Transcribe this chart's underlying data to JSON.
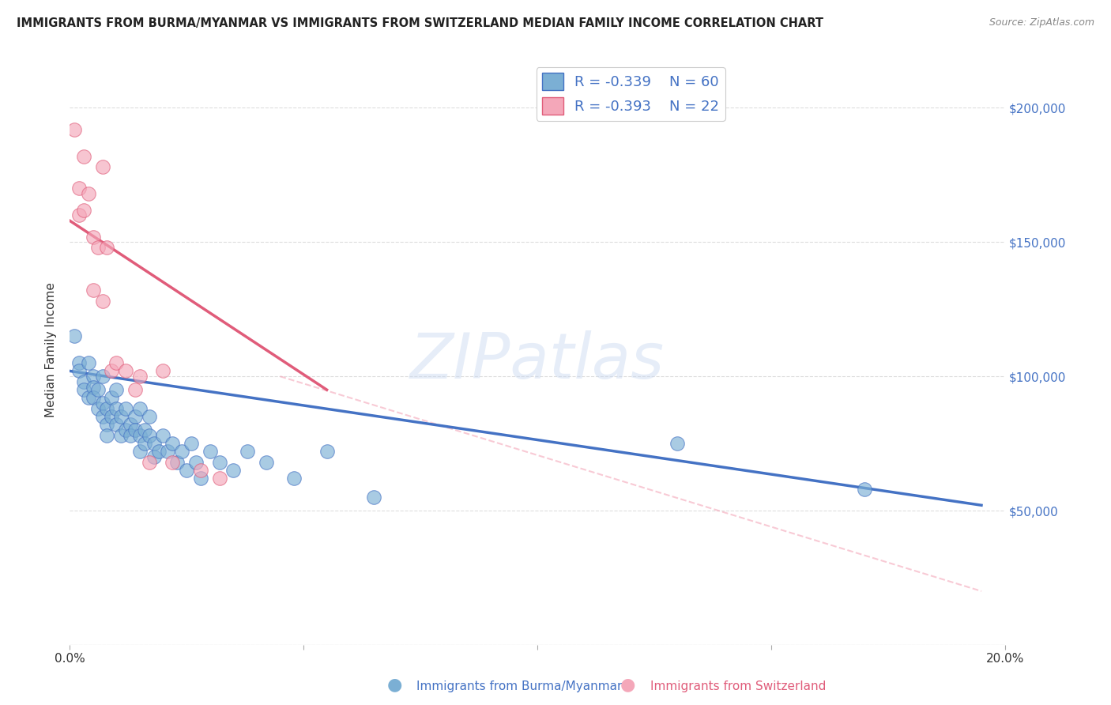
{
  "title": "IMMIGRANTS FROM BURMA/MYANMAR VS IMMIGRANTS FROM SWITZERLAND MEDIAN FAMILY INCOME CORRELATION CHART",
  "source": "Source: ZipAtlas.com",
  "ylabel": "Median Family Income",
  "xlim": [
    0.0,
    0.2
  ],
  "ylim": [
    0,
    220000
  ],
  "yticks": [
    0,
    50000,
    100000,
    150000,
    200000
  ],
  "blue_color": "#7BAFD4",
  "pink_color": "#F4A7B9",
  "blue_line_color": "#4472C4",
  "pink_line_color": "#E05C7A",
  "dashed_line_color": "#F4A7B9",
  "legend_R_blue": "-0.339",
  "legend_N_blue": "60",
  "legend_R_pink": "-0.393",
  "legend_N_pink": "22",
  "label_blue": "Immigrants from Burma/Myanmar",
  "label_pink": "Immigrants from Switzerland",
  "blue_scatter_x": [
    0.001,
    0.002,
    0.002,
    0.003,
    0.003,
    0.004,
    0.004,
    0.005,
    0.005,
    0.005,
    0.006,
    0.006,
    0.007,
    0.007,
    0.007,
    0.008,
    0.008,
    0.008,
    0.009,
    0.009,
    0.01,
    0.01,
    0.01,
    0.011,
    0.011,
    0.012,
    0.012,
    0.013,
    0.013,
    0.014,
    0.014,
    0.015,
    0.015,
    0.015,
    0.016,
    0.016,
    0.017,
    0.017,
    0.018,
    0.018,
    0.019,
    0.02,
    0.021,
    0.022,
    0.023,
    0.024,
    0.025,
    0.026,
    0.027,
    0.028,
    0.03,
    0.032,
    0.035,
    0.038,
    0.042,
    0.048,
    0.055,
    0.065,
    0.13,
    0.17
  ],
  "blue_scatter_y": [
    115000,
    105000,
    102000,
    98000,
    95000,
    92000,
    105000,
    100000,
    96000,
    92000,
    88000,
    95000,
    90000,
    85000,
    100000,
    88000,
    82000,
    78000,
    85000,
    92000,
    88000,
    82000,
    95000,
    78000,
    85000,
    80000,
    88000,
    82000,
    78000,
    85000,
    80000,
    78000,
    72000,
    88000,
    80000,
    75000,
    78000,
    85000,
    75000,
    70000,
    72000,
    78000,
    72000,
    75000,
    68000,
    72000,
    65000,
    75000,
    68000,
    62000,
    72000,
    68000,
    65000,
    72000,
    68000,
    62000,
    72000,
    55000,
    75000,
    58000
  ],
  "pink_scatter_x": [
    0.001,
    0.002,
    0.002,
    0.003,
    0.003,
    0.004,
    0.005,
    0.005,
    0.006,
    0.007,
    0.007,
    0.008,
    0.009,
    0.01,
    0.012,
    0.014,
    0.015,
    0.017,
    0.02,
    0.022,
    0.028,
    0.032
  ],
  "pink_scatter_y": [
    192000,
    170000,
    160000,
    182000,
    162000,
    168000,
    152000,
    132000,
    148000,
    178000,
    128000,
    148000,
    102000,
    105000,
    102000,
    95000,
    100000,
    68000,
    102000,
    68000,
    65000,
    62000
  ],
  "blue_line_x": [
    0.0,
    0.195
  ],
  "blue_line_y": [
    102000,
    52000
  ],
  "pink_line_x": [
    0.0,
    0.055
  ],
  "pink_line_y": [
    158000,
    95000
  ],
  "dashed_line_x": [
    0.045,
    0.195
  ],
  "dashed_line_y": [
    100000,
    20000
  ],
  "watermark": "ZIPatlas",
  "background_color": "#ffffff",
  "grid_color": "#dddddd"
}
